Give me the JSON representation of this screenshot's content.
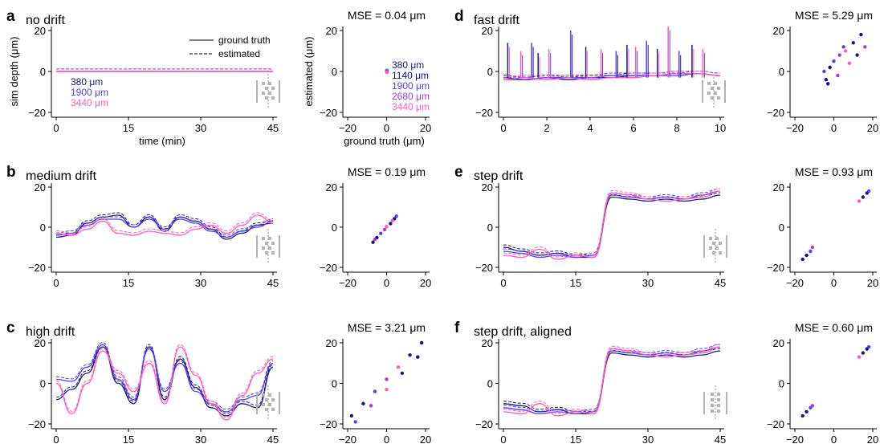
{
  "colors": {
    "380": "#1a1a7e",
    "1140": "#0b0b9c",
    "1900": "#5a3cf0",
    "2680": "#a23cd8",
    "3440": "#ff5cb8",
    "probe": "#b3b3b3"
  },
  "legend": {
    "solid": "ground truth",
    "dashed": "estimated"
  },
  "chart_data": [
    {
      "id": "a",
      "letter": "a",
      "title": "no drift",
      "type": "line",
      "xlabel": "time (min)",
      "ylabel": "sim depth (μm)",
      "xlim": [
        0,
        45
      ],
      "ylim": [
        -20,
        20
      ],
      "xticks": [
        "0",
        "15",
        "30",
        "45"
      ],
      "yticks": [
        "−20",
        "0",
        "20"
      ],
      "depth_labels": [
        "380 μm",
        "1900 μm",
        "3440 μm"
      ],
      "series": [
        {
          "depth": "380",
          "values": [
            0,
            0
          ]
        },
        {
          "depth": "1900",
          "values": [
            0,
            0
          ]
        },
        {
          "depth": "3440",
          "values": [
            0,
            0
          ]
        }
      ]
    },
    {
      "id": "a2",
      "type": "scatter",
      "mse": "MSE = 0.04 μm",
      "xlabel": "ground truth (μm)",
      "ylabel": "estimated (μm)",
      "xlim": [
        -20,
        20
      ],
      "ylim": [
        -20,
        20
      ],
      "xticks": [
        "−20",
        "0",
        "20"
      ],
      "yticks": [
        "−20",
        "0",
        "20"
      ],
      "depth_labels": [
        "380 μm",
        "1140 μm",
        "1900 μm",
        "2680 μm",
        "3440 μm"
      ],
      "points": [
        [
          0.1,
          0.1
        ],
        [
          0.2,
          -0.2
        ],
        [
          0.1,
          0.3
        ],
        [
          0.2,
          0.5
        ],
        [
          0.1,
          -0.4
        ]
      ]
    },
    {
      "id": "b",
      "letter": "b",
      "title": "medium drift",
      "type": "line",
      "xlim": [
        0,
        45
      ],
      "ylim": [
        -20,
        20
      ],
      "xticks": [
        "0",
        "15",
        "30",
        "45"
      ],
      "yticks": [
        "−20",
        "0",
        "20"
      ],
      "series": [
        {
          "depth": "380",
          "values": [
            -5,
            -4,
            2,
            5,
            6,
            0,
            5,
            -2,
            5,
            3,
            -1,
            -6,
            -3,
            1,
            2
          ]
        },
        {
          "depth": "1900",
          "values": [
            -4,
            -3,
            1,
            4,
            4,
            0,
            4,
            -1,
            4,
            2,
            -2,
            -5,
            -2,
            0,
            3
          ]
        },
        {
          "depth": "3440",
          "values": [
            -3,
            -4,
            -1,
            3,
            -3,
            -4,
            -2,
            -3,
            -4,
            -1,
            1,
            -3,
            1,
            6,
            2
          ]
        }
      ]
    },
    {
      "id": "b2",
      "type": "scatter",
      "mse": "MSE = 0.19 μm",
      "xlim": [
        -20,
        20
      ],
      "ylim": [
        -20,
        20
      ],
      "xticks": [
        "−20",
        "0",
        "20"
      ],
      "yticks": [
        "−20",
        "0",
        "20"
      ],
      "points": [
        [
          -7,
          -7.5
        ],
        [
          -5,
          -5.2
        ],
        [
          -3,
          -3.1
        ],
        [
          -1,
          -1.2
        ],
        [
          0,
          0.3
        ],
        [
          2,
          1.8
        ],
        [
          4,
          4.2
        ],
        [
          5,
          5.5
        ],
        [
          -6,
          -6.1
        ],
        [
          3,
          3.2
        ]
      ]
    },
    {
      "id": "c",
      "letter": "c",
      "title": "high drift",
      "type": "line",
      "xlim": [
        0,
        45
      ],
      "ylim": [
        -20,
        20
      ],
      "xticks": [
        "0",
        "15",
        "30",
        "45"
      ],
      "yticks": [
        "−20",
        "0",
        "20"
      ],
      "series": [
        {
          "depth": "380",
          "values": [
            -8,
            -3,
            5,
            18,
            0,
            -10,
            18,
            -8,
            12,
            -2,
            -12,
            -16,
            -10,
            -12,
            8
          ]
        },
        {
          "depth": "1900",
          "values": [
            2,
            1,
            8,
            19,
            2,
            -8,
            17,
            -4,
            10,
            -4,
            -10,
            -14,
            -8,
            -6,
            10
          ]
        },
        {
          "depth": "3440",
          "values": [
            0,
            -15,
            0,
            16,
            5,
            -4,
            10,
            -10,
            18,
            4,
            -10,
            -18,
            -6,
            5,
            12
          ]
        }
      ]
    },
    {
      "id": "c2",
      "type": "scatter",
      "mse": "MSE = 3.21 μm",
      "xlim": [
        -20,
        20
      ],
      "ylim": [
        -20,
        20
      ],
      "xticks": [
        "−20",
        "0",
        "20"
      ],
      "yticks": [
        "−20",
        "0",
        "20"
      ],
      "points": [
        [
          -18,
          -16
        ],
        [
          -12,
          -10
        ],
        [
          -6,
          -4
        ],
        [
          0,
          2
        ],
        [
          6,
          8
        ],
        [
          12,
          14
        ],
        [
          18,
          20
        ],
        [
          -16,
          -19
        ],
        [
          -8,
          -11
        ],
        [
          0,
          -3
        ],
        [
          8,
          5
        ],
        [
          16,
          13
        ]
      ]
    },
    {
      "id": "d",
      "letter": "d",
      "title": "fast drift",
      "type": "line",
      "xlim": [
        0,
        10
      ],
      "ylim": [
        -20,
        20
      ],
      "xticks": [
        "0",
        "2",
        "4",
        "6",
        "8",
        "10"
      ],
      "yticks": [
        "−20",
        "0",
        "20"
      ],
      "series": [
        {
          "depth": "380",
          "values": [
            -3,
            -4,
            -3,
            -4,
            -3,
            -3,
            -2,
            -2,
            -1,
            -1,
            -2
          ]
        },
        {
          "depth": "1900",
          "values": [
            -4,
            -4,
            -3,
            -3,
            -3,
            -2,
            -2,
            -2,
            -2,
            -1,
            -2
          ]
        },
        {
          "depth": "3440",
          "values": [
            -4,
            -3,
            -4,
            -3,
            -4,
            -3,
            -3,
            -2,
            -1,
            -1,
            -2
          ]
        }
      ],
      "spikes": [
        [
          0.2,
          14
        ],
        [
          0.8,
          10
        ],
        [
          1.3,
          14
        ],
        [
          1.6,
          9
        ],
        [
          2.1,
          11
        ],
        [
          3.1,
          20
        ],
        [
          3.8,
          12
        ],
        [
          4.5,
          11
        ],
        [
          5.2,
          10
        ],
        [
          5.7,
          13
        ],
        [
          6.1,
          12
        ],
        [
          6.6,
          15
        ],
        [
          7.1,
          11
        ],
        [
          7.6,
          22
        ],
        [
          8.1,
          10
        ],
        [
          8.7,
          13
        ],
        [
          9.2,
          11
        ]
      ]
    },
    {
      "id": "d2",
      "type": "scatter",
      "mse": "MSE = 5.29 μm",
      "xlim": [
        -20,
        20
      ],
      "ylim": [
        -20,
        20
      ],
      "xticks": [
        "−20",
        "0",
        "20"
      ],
      "yticks": [
        "−20",
        "0",
        "20"
      ],
      "points": [
        [
          -4,
          -4
        ],
        [
          -2,
          2
        ],
        [
          0,
          5
        ],
        [
          3,
          8
        ],
        [
          6,
          10
        ],
        [
          10,
          14
        ],
        [
          14,
          18
        ],
        [
          -5,
          0
        ],
        [
          2,
          -2
        ],
        [
          8,
          4
        ],
        [
          12,
          8
        ],
        [
          -3,
          -6
        ],
        [
          5,
          12
        ],
        [
          16,
          12
        ]
      ]
    },
    {
      "id": "e",
      "letter": "e",
      "title": "step drift",
      "type": "line",
      "xlim": [
        0,
        45
      ],
      "ylim": [
        -20,
        20
      ],
      "xticks": [
        "0",
        "15",
        "30",
        "45"
      ],
      "yticks": [
        "−20",
        "0",
        "20"
      ],
      "series": [
        {
          "depth": "380",
          "values": [
            -10,
            -12,
            -14,
            -13,
            -15,
            -15,
            15,
            14,
            13,
            14,
            13,
            14,
            16
          ]
        },
        {
          "depth": "1900",
          "values": [
            -12,
            -13,
            -15,
            -14,
            -15,
            -14,
            16,
            15,
            14,
            15,
            14,
            16,
            18
          ]
        },
        {
          "depth": "3440",
          "values": [
            -14,
            -15,
            -11,
            -16,
            -14,
            -15,
            17,
            16,
            14,
            13,
            14,
            15,
            18
          ]
        }
      ]
    },
    {
      "id": "e2",
      "type": "scatter",
      "mse": "MSE = 0.93 μm",
      "xlim": [
        -20,
        20
      ],
      "ylim": [
        -20,
        20
      ],
      "xticks": [
        "−20",
        "0",
        "20"
      ],
      "yticks": [
        "−20",
        "0",
        "20"
      ],
      "points": [
        [
          -16,
          -16
        ],
        [
          -14,
          -14
        ],
        [
          -12,
          -12
        ],
        [
          -11,
          -10
        ],
        [
          13,
          13
        ],
        [
          15,
          15
        ],
        [
          17,
          17
        ],
        [
          18,
          18
        ]
      ]
    },
    {
      "id": "f",
      "letter": "f",
      "title": "step drift, aligned",
      "type": "line",
      "xlim": [
        0,
        45
      ],
      "ylim": [
        -20,
        20
      ],
      "xticks": [
        "0",
        "15",
        "30",
        "45"
      ],
      "yticks": [
        "−20",
        "0",
        "20"
      ],
      "series": [
        {
          "depth": "380",
          "values": [
            -10,
            -11,
            -14,
            -13,
            -15,
            -15,
            15,
            14,
            13,
            14,
            13,
            14,
            16
          ]
        },
        {
          "depth": "1900",
          "values": [
            -12,
            -13,
            -15,
            -14,
            -15,
            -14,
            16,
            15,
            14,
            15,
            14,
            16,
            18
          ]
        },
        {
          "depth": "3440",
          "values": [
            -14,
            -15,
            -10,
            -16,
            -14,
            -15,
            17,
            16,
            14,
            13,
            14,
            15,
            18
          ]
        }
      ]
    },
    {
      "id": "f2",
      "type": "scatter",
      "mse": "MSE = 0.60 μm",
      "xlim": [
        -20,
        20
      ],
      "ylim": [
        -20,
        20
      ],
      "xticks": [
        "−20",
        "0",
        "20"
      ],
      "yticks": [
        "−20",
        "0",
        "20"
      ],
      "points": [
        [
          -16,
          -16
        ],
        [
          -14,
          -14
        ],
        [
          -12,
          -12
        ],
        [
          -11,
          -11
        ],
        [
          13,
          13
        ],
        [
          15,
          15
        ],
        [
          17,
          17
        ],
        [
          18,
          18
        ]
      ]
    }
  ]
}
